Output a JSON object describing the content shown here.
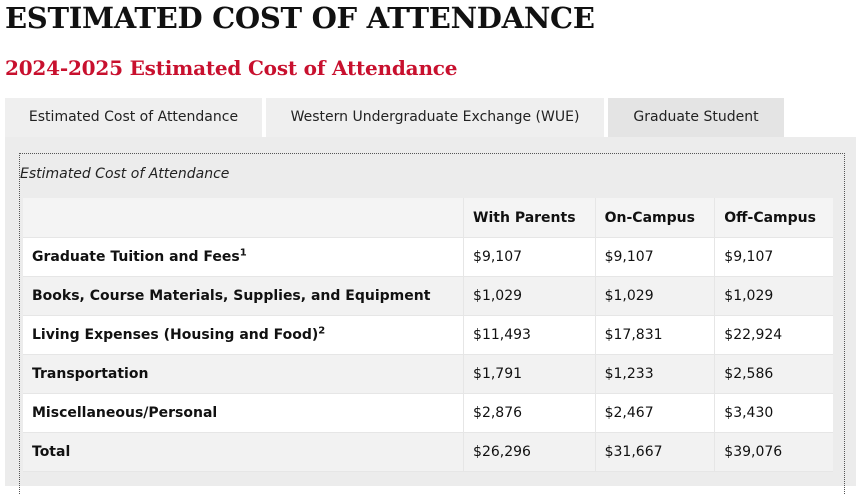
{
  "page": {
    "title": "ESTIMATED COST OF ATTENDANCE",
    "subtitle": "2024-2025 Estimated Cost of Attendance"
  },
  "tabs": [
    {
      "label": "Estimated Cost of Attendance",
      "active": false
    },
    {
      "label": "Western Undergraduate Exchange (WUE)",
      "active": false
    },
    {
      "label": "Graduate Student",
      "active": true
    }
  ],
  "table": {
    "caption": "Estimated Cost of Attendance",
    "columns": [
      "",
      "With Parents",
      "On-Campus",
      "Off-Campus"
    ],
    "rows": [
      {
        "label": "Graduate Tuition and Fees",
        "footnote": "1",
        "values": [
          "$9,107",
          "$9,107",
          "$9,107"
        ]
      },
      {
        "label": "Books, Course Materials, Supplies, and Equipment",
        "footnote": "",
        "values": [
          "$1,029",
          "$1,029",
          "$1,029"
        ]
      },
      {
        "label": "Living Expenses (Housing and Food)",
        "footnote": "2",
        "values": [
          "$11,493",
          "$17,831",
          "$22,924"
        ]
      },
      {
        "label": "Transportation",
        "footnote": "",
        "values": [
          "$1,791",
          "$1,233",
          "$2,586"
        ]
      },
      {
        "label": "Miscellaneous/Personal",
        "footnote": "",
        "values": [
          "$2,876",
          "$2,467",
          "$3,430"
        ]
      },
      {
        "label": "Total",
        "footnote": "",
        "values": [
          "$26,296",
          "$31,667",
          "$39,076"
        ]
      }
    ]
  },
  "colors": {
    "accent": "#c8102e",
    "tab_bg": "#efefef",
    "panel_bg": "#ececec"
  }
}
